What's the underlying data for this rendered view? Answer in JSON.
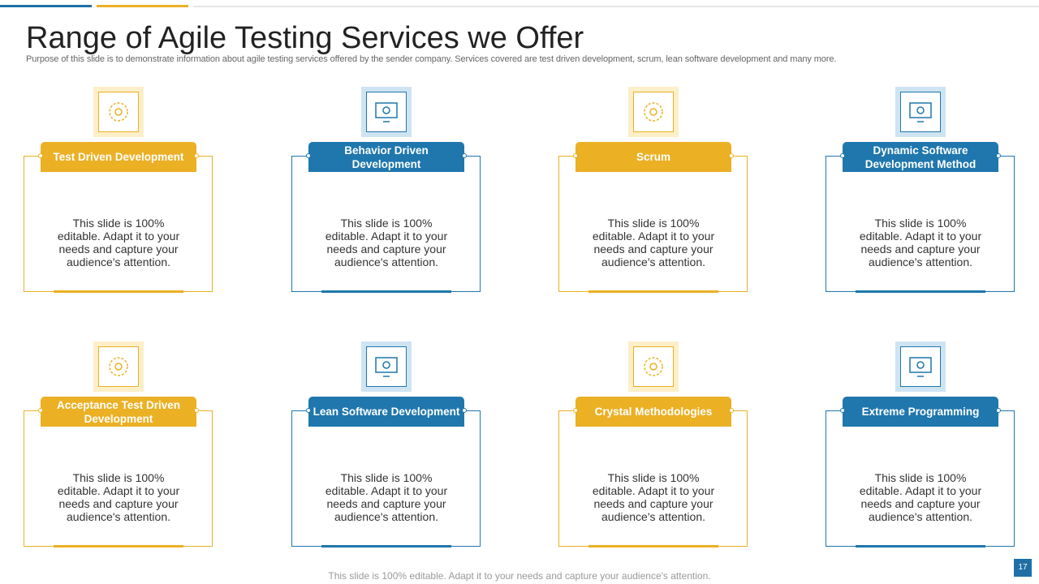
{
  "header": {
    "title": "Range of Agile Testing Services we Offer",
    "subtitle": "Purpose of this slide is to demonstrate information about agile testing services offered by the sender company. Services covered are test driven development, scrum, lean software development and many more."
  },
  "cards": [
    {
      "title": "Test Driven Development",
      "body": "This slide is 100% editable. Adapt it to your needs and capture your audience's attention."
    },
    {
      "title": "Behavior Driven Development",
      "body": "This slide is 100% editable. Adapt it to your needs and capture your audience's attention."
    },
    {
      "title": "Scrum",
      "body": "This slide is 100% editable. Adapt it to your needs and capture your audience's attention."
    },
    {
      "title": "Dynamic Software Development Method",
      "body": "This slide is 100% editable. Adapt it to your needs and capture your audience's attention."
    },
    {
      "title": "Acceptance Test Driven Development",
      "body": "This slide is 100% editable. Adapt it to your needs and capture your audience's attention."
    },
    {
      "title": "Lean Software Development",
      "body": "This slide is 100% editable. Adapt it to your needs and capture your audience's attention."
    },
    {
      "title": "Crystal Methodologies",
      "body": "This slide is 100% editable. Adapt it to your needs and capture your audience's attention."
    },
    {
      "title": "Extreme Programming",
      "body": "This slide is 100% editable. Adapt it to your needs and capture your audience's attention."
    }
  ],
  "footer": "This slide is 100% editable. Adapt it to your needs and capture your audience's attention.",
  "page_number": "17"
}
